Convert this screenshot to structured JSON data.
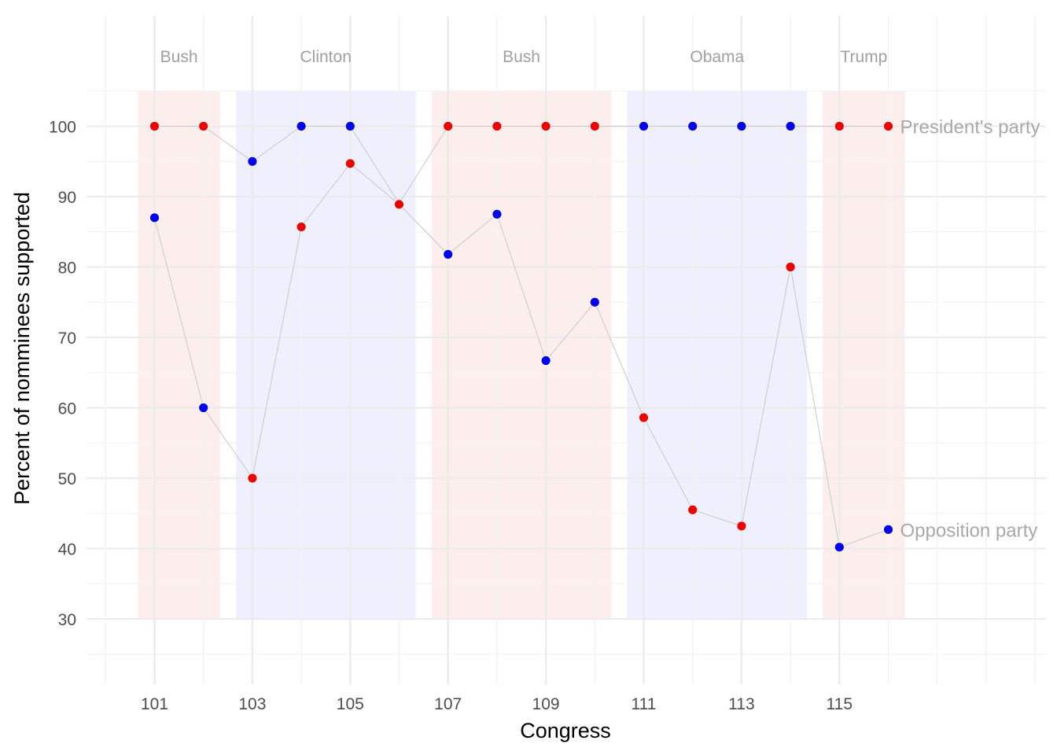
{
  "chart_data": {
    "type": "scatter",
    "title": "",
    "xlabel": "Congress",
    "ylabel": "Percent of nomminees supported",
    "xlim": [
      100,
      119
    ],
    "ylim": [
      23,
      107
    ],
    "x_ticks": [
      "101",
      "103",
      "105",
      "107",
      "109",
      "111",
      "113",
      "115"
    ],
    "y_ticks": [
      "30",
      "40",
      "50",
      "60",
      "70",
      "80",
      "90",
      "100"
    ],
    "grid": true,
    "colors": {
      "republican": "#ee0000",
      "democrat": "#0000ee",
      "republican_band": "#fdeeee",
      "democrat_band": "#efeffd",
      "connector": "#c8c8c8"
    },
    "presidencies": [
      {
        "label": "Bush",
        "party": "republican",
        "start": 101,
        "end": 102
      },
      {
        "label": "Clinton",
        "party": "democrat",
        "start": 103,
        "end": 106
      },
      {
        "label": "Bush",
        "party": "republican",
        "start": 107,
        "end": 110
      },
      {
        "label": "Obama",
        "party": "democrat",
        "start": 111,
        "end": 114
      },
      {
        "label": "Trump",
        "party": "republican",
        "start": 115,
        "end": 116
      }
    ],
    "series": [
      {
        "name": "President's party",
        "points": [
          {
            "x": 101,
            "y": 100,
            "party": "republican"
          },
          {
            "x": 102,
            "y": 100,
            "party": "republican"
          },
          {
            "x": 103,
            "y": 95,
            "party": "democrat"
          },
          {
            "x": 104,
            "y": 100,
            "party": "democrat"
          },
          {
            "x": 105,
            "y": 100,
            "party": "democrat"
          },
          {
            "x": 106,
            "y": 89,
            "party": "democrat"
          },
          {
            "x": 107,
            "y": 100,
            "party": "republican"
          },
          {
            "x": 108,
            "y": 100,
            "party": "republican"
          },
          {
            "x": 109,
            "y": 100,
            "party": "republican"
          },
          {
            "x": 110,
            "y": 100,
            "party": "republican"
          },
          {
            "x": 111,
            "y": 100,
            "party": "democrat"
          },
          {
            "x": 112,
            "y": 100,
            "party": "democrat"
          },
          {
            "x": 113,
            "y": 100,
            "party": "democrat"
          },
          {
            "x": 114,
            "y": 100,
            "party": "democrat"
          },
          {
            "x": 115,
            "y": 100,
            "party": "republican"
          },
          {
            "x": 116,
            "y": 100,
            "party": "republican"
          }
        ]
      },
      {
        "name": "Opposition party",
        "points": [
          {
            "x": 101,
            "y": 87,
            "party": "democrat"
          },
          {
            "x": 102,
            "y": 60,
            "party": "democrat"
          },
          {
            "x": 103,
            "y": 50,
            "party": "republican"
          },
          {
            "x": 104,
            "y": 85.7,
            "party": "republican"
          },
          {
            "x": 105,
            "y": 94.7,
            "party": "republican"
          },
          {
            "x": 106,
            "y": 88.9,
            "party": "republican"
          },
          {
            "x": 107,
            "y": 81.8,
            "party": "democrat"
          },
          {
            "x": 108,
            "y": 87.5,
            "party": "democrat"
          },
          {
            "x": 109,
            "y": 66.7,
            "party": "democrat"
          },
          {
            "x": 110,
            "y": 75,
            "party": "democrat"
          },
          {
            "x": 111,
            "y": 58.6,
            "party": "republican"
          },
          {
            "x": 112,
            "y": 45.5,
            "party": "republican"
          },
          {
            "x": 113,
            "y": 43.2,
            "party": "republican"
          },
          {
            "x": 114,
            "y": 80,
            "party": "republican"
          },
          {
            "x": 115,
            "y": 40.2,
            "party": "democrat"
          },
          {
            "x": 116,
            "y": 42.7,
            "party": "democrat"
          }
        ]
      }
    ]
  }
}
